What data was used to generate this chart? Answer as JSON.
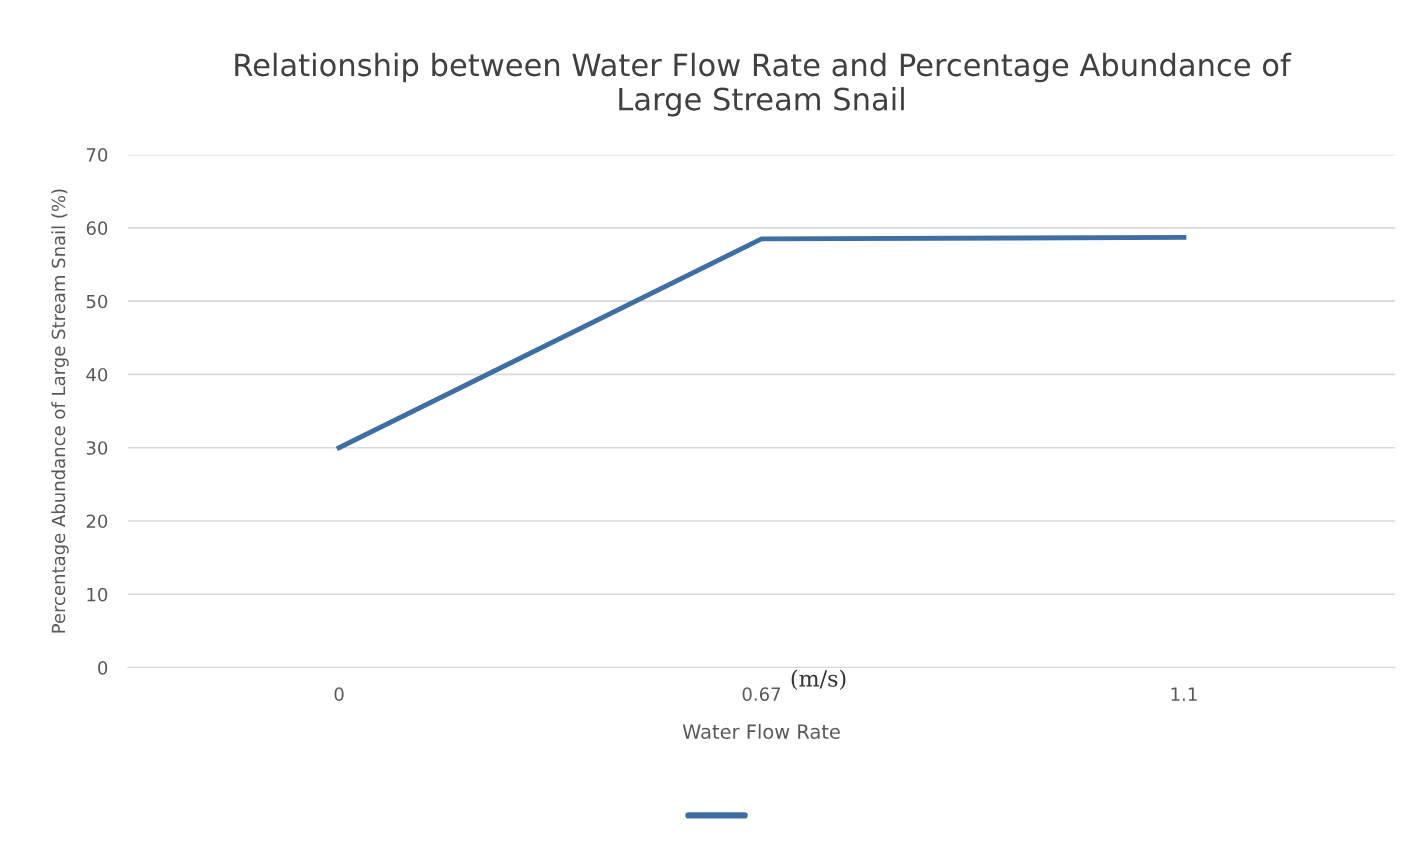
{
  "chart_data": {
    "type": "line",
    "title": "Relationship between Water Flow Rate and Percentage Abundance of\nLarge Stream Snail",
    "xlabel": "Water Flow Rate",
    "ylabel": "Percentage Abundance of Large Stream Snail (%)",
    "categories": [
      "0",
      "0.67",
      "1.1"
    ],
    "series": [
      {
        "color": "#3f6ea5",
        "values": [
          30,
          58.5,
          58.7
        ]
      }
    ],
    "ylim": [
      0,
      70
    ],
    "yticks": [
      0,
      10,
      20,
      30,
      40,
      50,
      60,
      70
    ],
    "grid": "y",
    "marker": "none",
    "line_style": "solid",
    "annotations": [
      "(m/s)"
    ]
  }
}
